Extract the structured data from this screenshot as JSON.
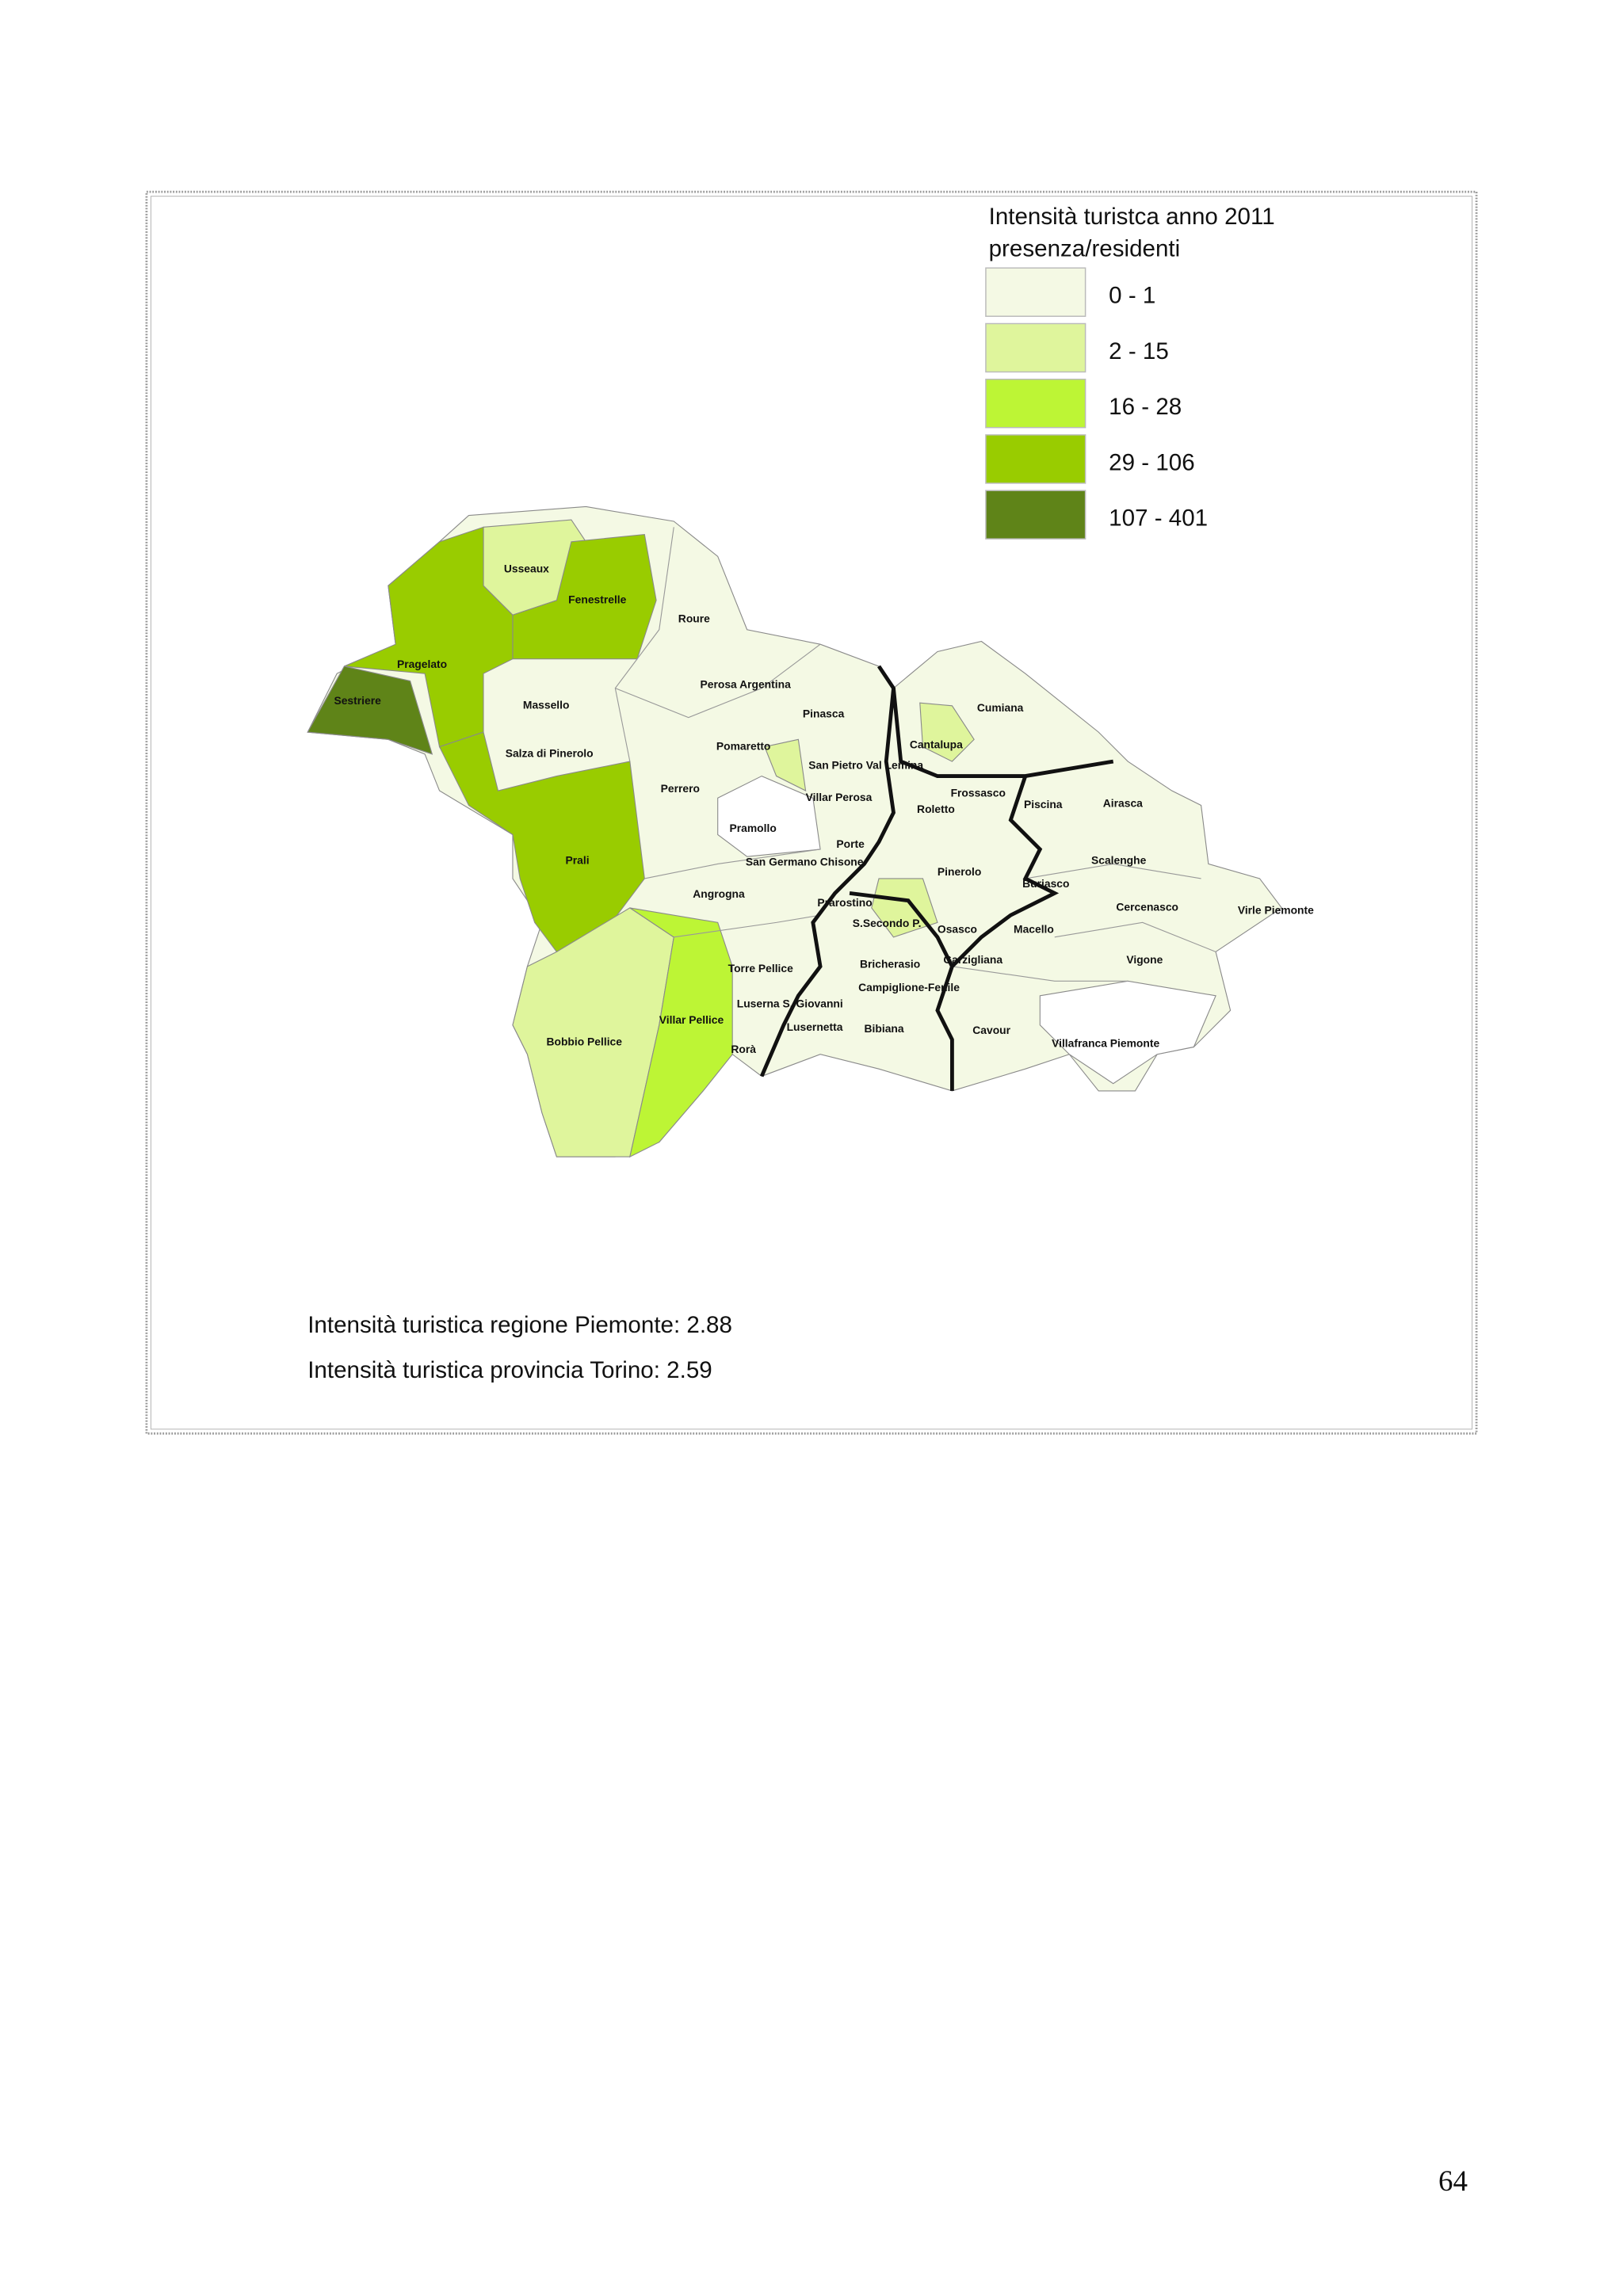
{
  "legend": {
    "title": "Intensità turistca anno 2011",
    "subtitle": "presenza/residenti",
    "classes": [
      {
        "label": "0 - 1",
        "color": "#f4f9e4"
      },
      {
        "label": "2 - 15",
        "color": "#dff59c"
      },
      {
        "label": "16 - 28",
        "color": "#bdf535"
      },
      {
        "label": "29 - 106",
        "color": "#99cc00"
      },
      {
        "label": "107 - 401",
        "color": "#5f8418"
      }
    ]
  },
  "municipalities": [
    "Usseaux",
    "Fenestrelle",
    "Roure",
    "Pragelato",
    "Sestriere",
    "Massello",
    "Perosa Argentina",
    "Pinasca",
    "Pomaretto",
    "Salza di Pinerolo",
    "San Pietro Val Lemina",
    "Cantalupa",
    "Cumiana",
    "Perrero",
    "Villar Perosa",
    "Frossasco",
    "Roletto",
    "Piscina",
    "Airasca",
    "Pramollo",
    "Porte",
    "San Germano Chisone",
    "Scalenghe",
    "Pinerolo",
    "Prali",
    "Angrogna",
    "Buriasco",
    "Prarostino",
    "S.Secondo P.",
    "Osasco",
    "Cercenasco",
    "Virle Piemonte",
    "Macello",
    "Torre Pellice",
    "Bricherasio",
    "Garzigliana",
    "Vigone",
    "Campiglione-Fenile",
    "Luserna S. Giovanni",
    "Villar Pellice",
    "Lusernetta",
    "Bibiana",
    "Cavour",
    "Bobbio Pellice",
    "Rorà",
    "Villafranca Piemonte"
  ],
  "notes": [
    "Intensità turistica regione Piemonte: 2.88",
    "Intensità turistica provincia Torino: 2.59"
  ],
  "page_number": "64"
}
